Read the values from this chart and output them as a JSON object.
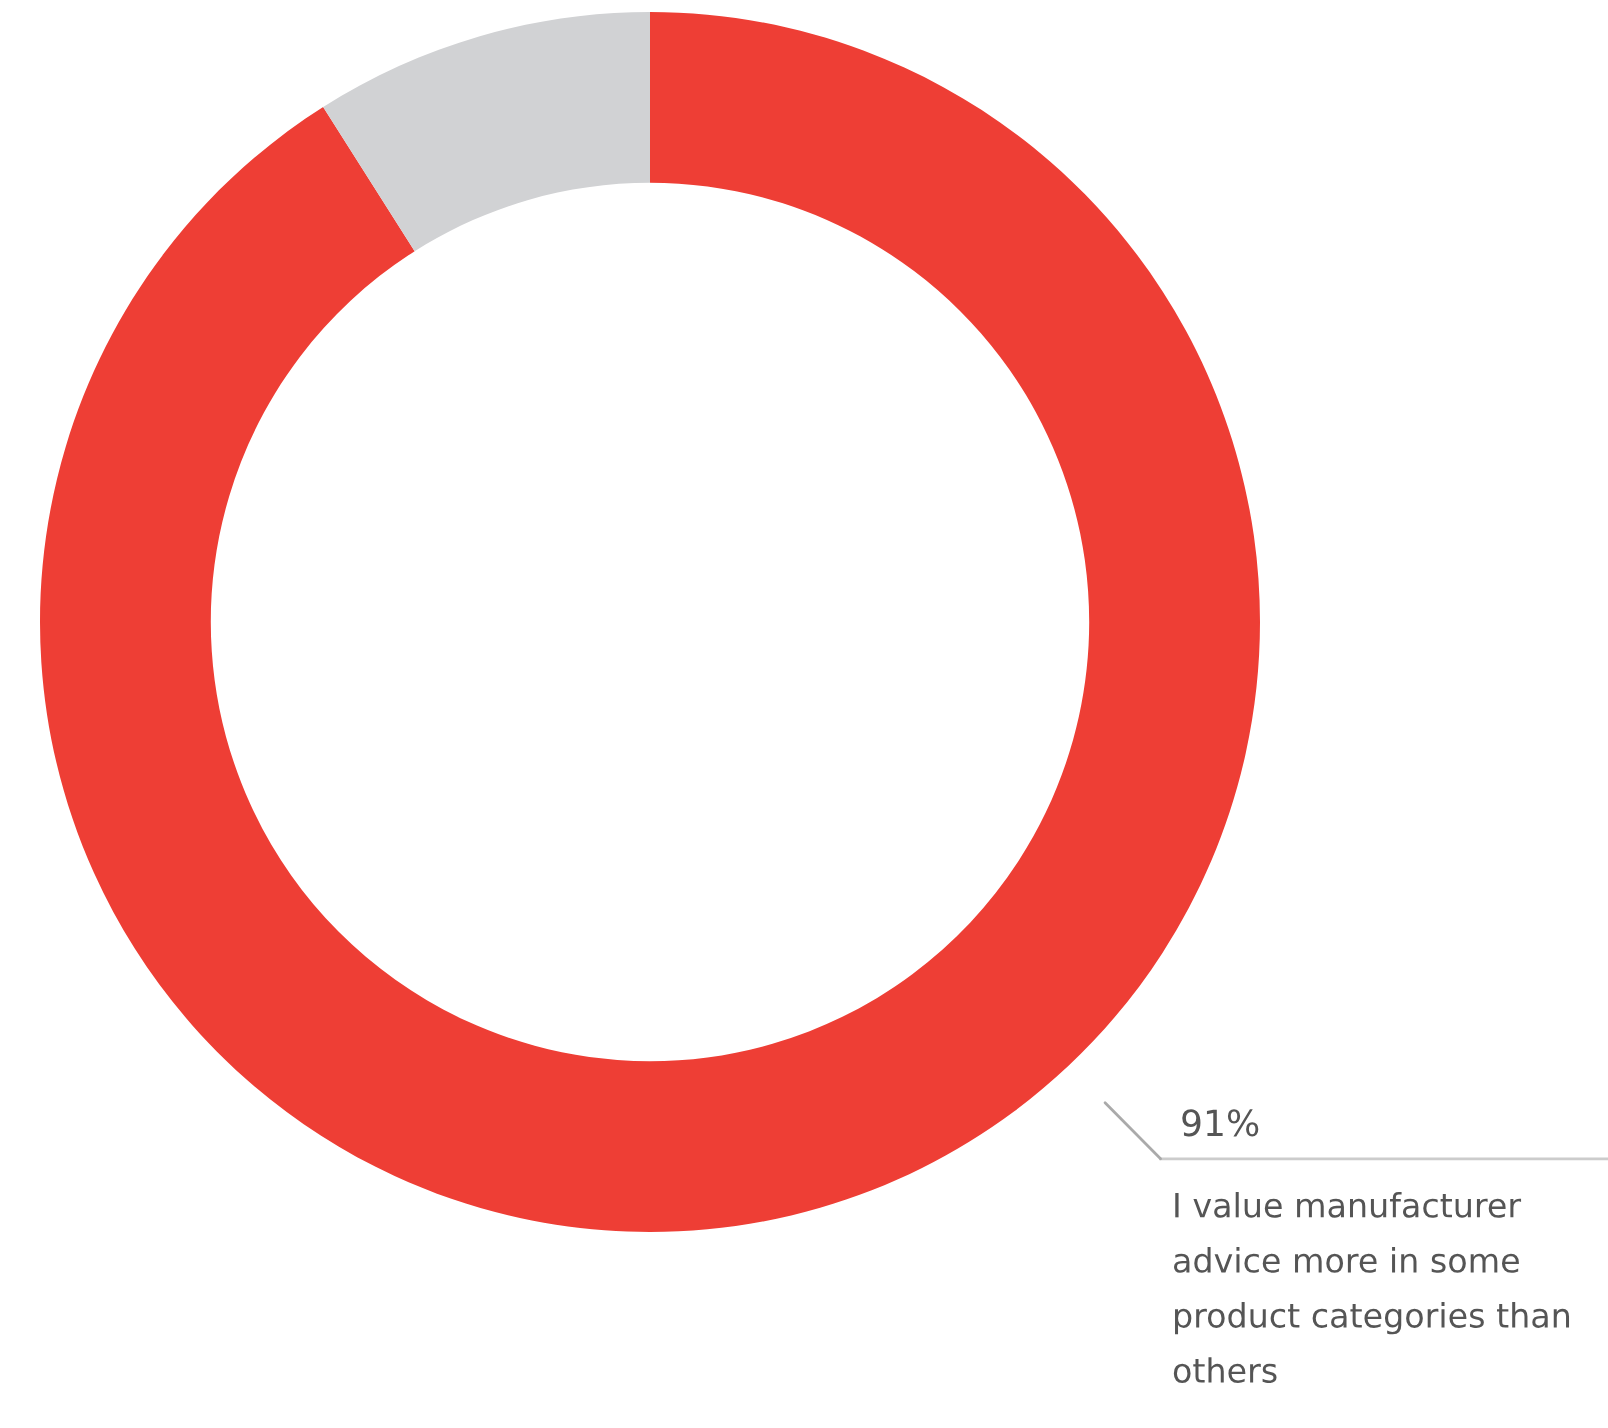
{
  "chart_data": {
    "type": "donut",
    "categories": [
      "I value manufacturer advice more in some product categories than others",
      null
    ],
    "values": [
      91,
      9
    ],
    "colors": [
      "#ee3e35",
      "#d1d2d4"
    ],
    "value_labels": [
      "91%",
      null
    ]
  }
}
